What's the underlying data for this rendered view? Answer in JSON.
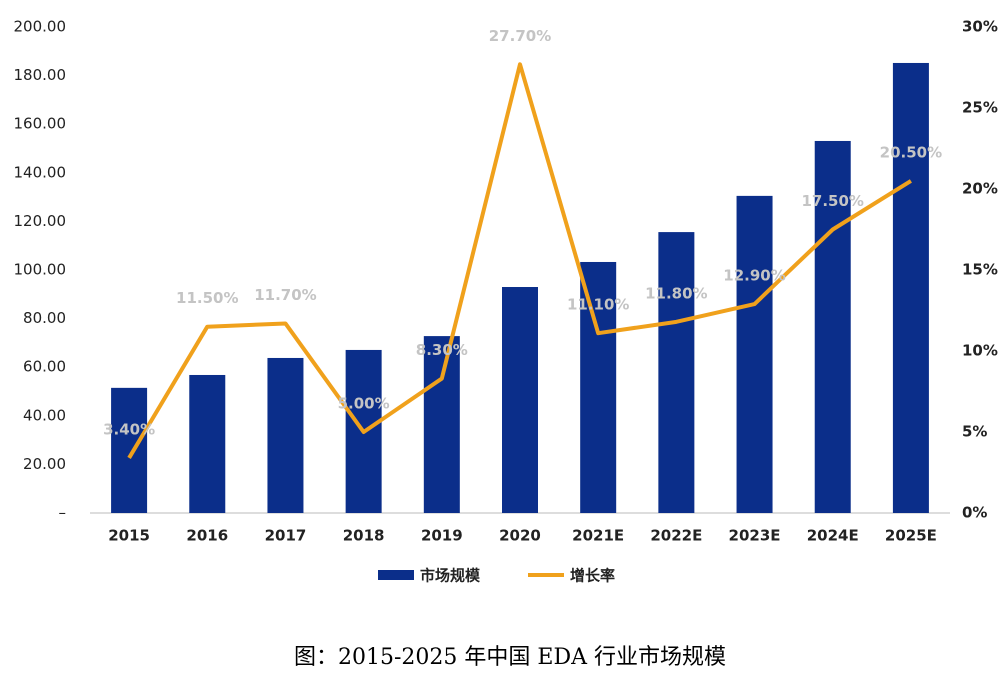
{
  "chart_data": {
    "type": "bar",
    "caption": "图：2015-2025 年中国 EDA 行业市场规模",
    "categories": [
      "2015",
      "2016",
      "2017",
      "2018",
      "2019",
      "2020",
      "2021E",
      "2022E",
      "2023E",
      "2024E",
      "2025E"
    ],
    "series": [
      {
        "name": "市场规模",
        "type": "bar",
        "color": "#0b2e8a",
        "values": [
          51.5,
          56.8,
          63.8,
          67.1,
          72.8,
          93.0,
          103.3,
          115.6,
          130.5,
          153.1,
          185.2
        ]
      },
      {
        "name": "增长率",
        "type": "line",
        "axis": "y2",
        "color": "#f0a11c",
        "values": [
          3.4,
          11.5,
          11.7,
          5.0,
          8.3,
          27.7,
          11.1,
          11.8,
          12.9,
          17.5,
          20.5
        ],
        "value_labels": [
          "3.40%",
          "11.50%",
          "11.70%",
          "5.00%",
          "8.30%",
          "27.70%",
          "11.10%",
          "11.80%",
          "12.90%",
          "17.50%",
          "20.50%"
        ]
      }
    ],
    "ylim": [
      0,
      200
    ],
    "yticks": [
      {
        "value": 0,
        "label": "–"
      },
      {
        "value": 20,
        "label": "20.00"
      },
      {
        "value": 40,
        "label": "40.00"
      },
      {
        "value": 60,
        "label": "60.00"
      },
      {
        "value": 80,
        "label": "80.00"
      },
      {
        "value": 100,
        "label": "100.00"
      },
      {
        "value": 120,
        "label": "120.00"
      },
      {
        "value": 140,
        "label": "140.00"
      },
      {
        "value": 160,
        "label": "160.00"
      },
      {
        "value": 180,
        "label": "180.00"
      },
      {
        "value": 200,
        "label": "200.00"
      }
    ],
    "y2lim": [
      0,
      30
    ],
    "y2ticks": [
      {
        "value": 0,
        "label": "0%"
      },
      {
        "value": 5,
        "label": "5%"
      },
      {
        "value": 10,
        "label": "10%"
      },
      {
        "value": 15,
        "label": "15%"
      },
      {
        "value": 20,
        "label": "20%"
      },
      {
        "value": 25,
        "label": "25%"
      },
      {
        "value": 30,
        "label": "30%"
      }
    ],
    "legend": "bottom"
  }
}
